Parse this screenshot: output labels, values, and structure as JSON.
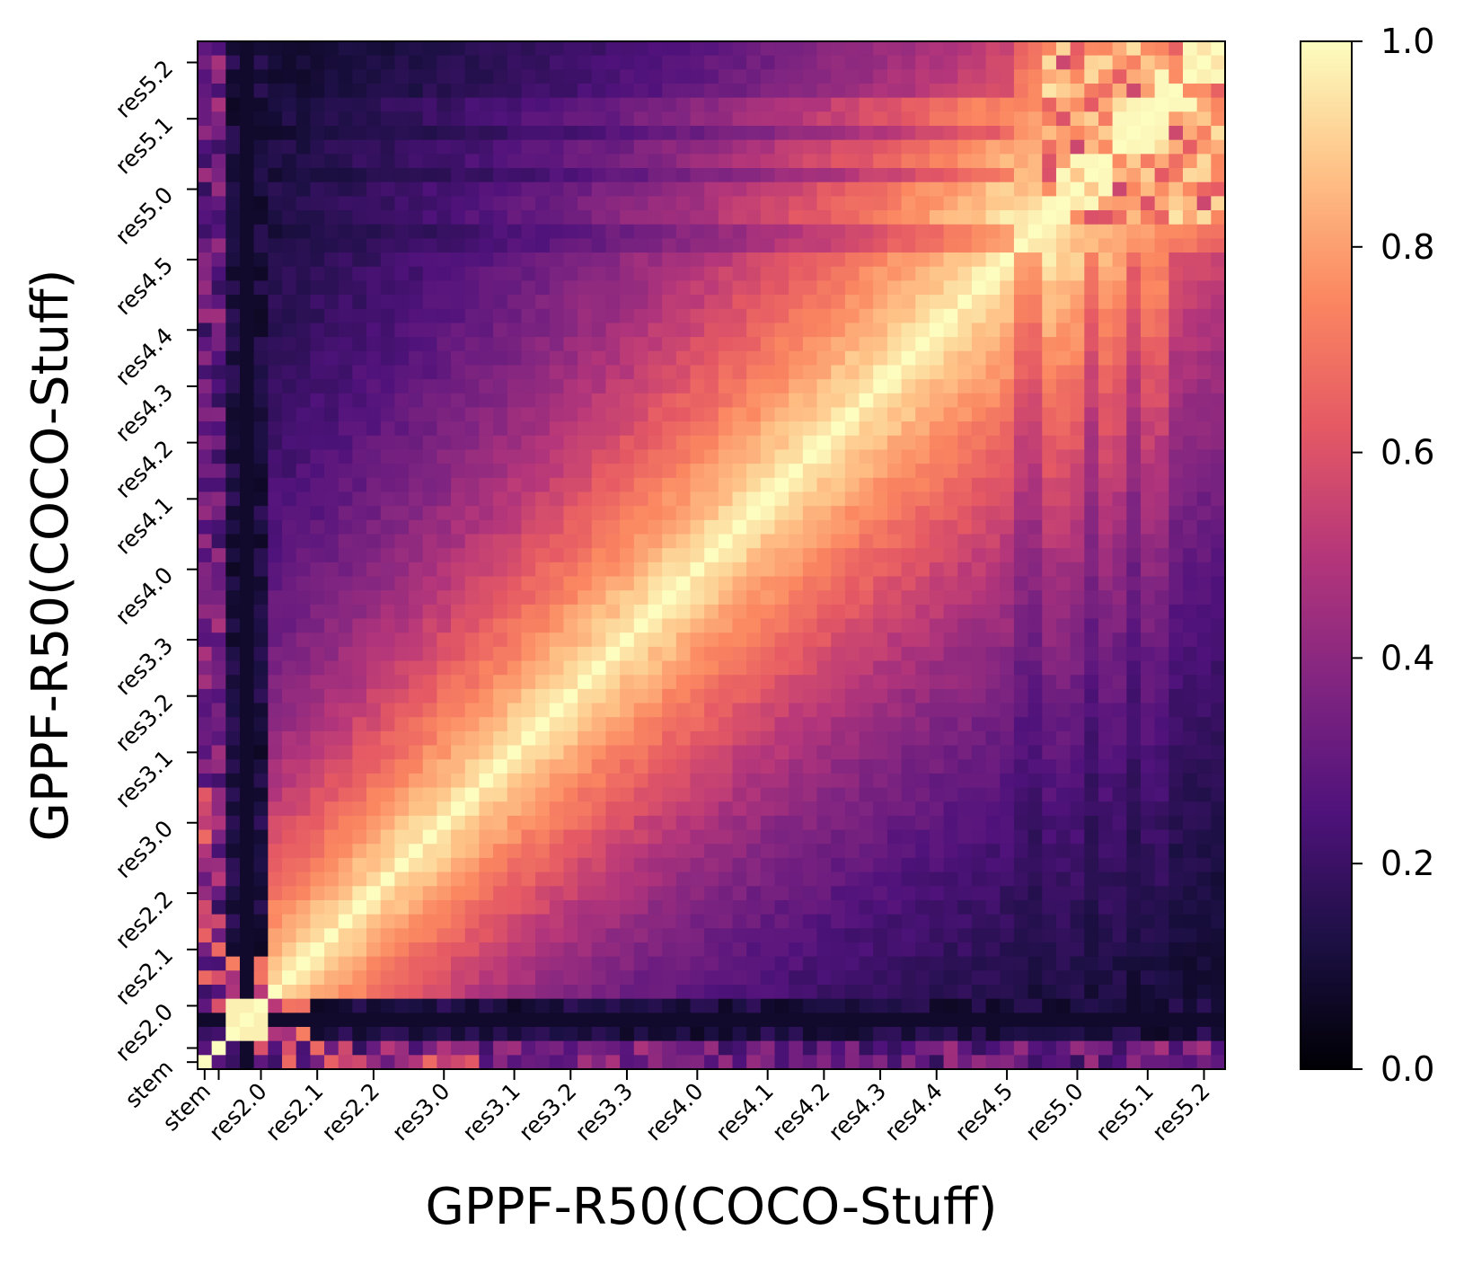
{
  "chart_data": {
    "type": "heatmap",
    "title": "",
    "xlabel": "GPPF-R50(COCO-Stuff)",
    "ylabel": "GPPF-R50(COCO-Stuff)",
    "tick_labels": [
      "stem",
      "res2.0",
      "res2.1",
      "res2.2",
      "res3.0",
      "res3.1",
      "res3.2",
      "res3.3",
      "res4.0",
      "res4.1",
      "res4.2",
      "res4.3",
      "res4.4",
      "res4.5",
      "res5.0",
      "res5.1",
      "res5.2"
    ],
    "tick_positions": [
      0.5,
      4.5,
      8.5,
      12.5,
      17.5,
      22.5,
      26.5,
      30.5,
      35.5,
      40.5,
      44.5,
      48.5,
      52.5,
      57.5,
      62.5,
      67.5,
      71.5
    ],
    "extra_tick_positions": [
      1.5
    ],
    "n_cells": 73,
    "value_range": [
      0.0,
      1.0
    ],
    "colormap": "magma",
    "description_of_values": "Layer-wise representation similarity; 1.0 on diagonal, high similarity (0.7-1.0) among neighbouring layers, low (0.0-0.3) between early and late layers; res2.0 block and first columns near 0.1.",
    "colorbar": {
      "ticks": [
        0.0,
        0.2,
        0.4,
        0.6,
        0.8,
        1.0
      ],
      "tick_labels": [
        "0.0",
        "0.2",
        "0.4",
        "0.6",
        "0.8",
        "1.0"
      ]
    }
  },
  "colors": {
    "cmap_stops": [
      "#000004",
      "#1c1044",
      "#4f127b",
      "#812581",
      "#b5367a",
      "#e55964",
      "#fb8761",
      "#fec287",
      "#fcfdbf"
    ]
  }
}
